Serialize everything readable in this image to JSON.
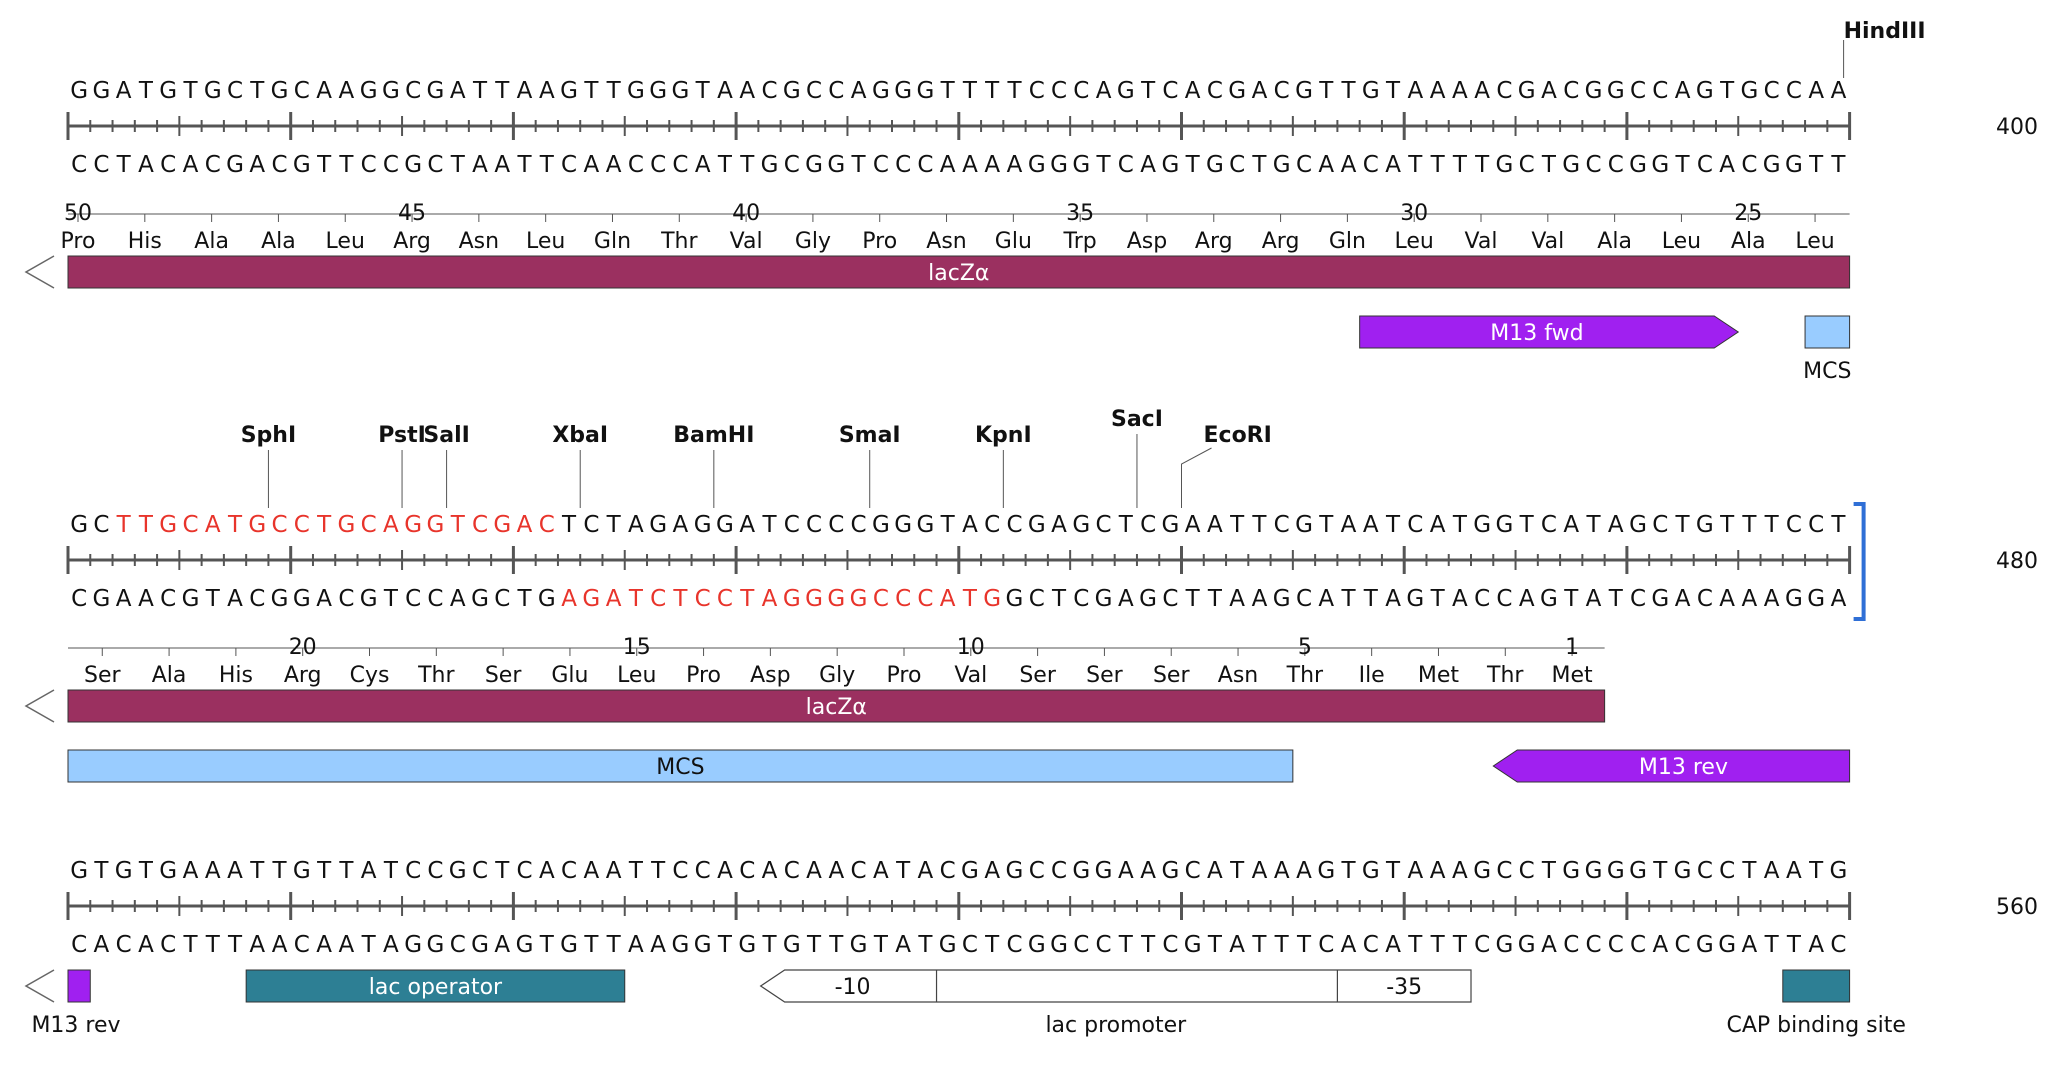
{
  "colors": {
    "text": "#111111",
    "highlight": "#e8342b",
    "ruler": "#555555",
    "lacZ": "#9b3060",
    "m13": "#a020f0",
    "mcs": "#99ccff",
    "lacOperator": "#2d7f94",
    "cap": "#2d7f94",
    "promoter": "#ffffff",
    "selection": "#2f6fd6"
  },
  "rows": [
    {
      "top": "GGATGTGCTGCAAGGCGATTAAGTTGGGTAACGCCAGGGTTTTCCCAGTCACGACGTTGTAAAACGACGGCCAGTGCCAA",
      "bottom": "CCTACACGACGTTCCGCTAATTCAACCCATTGCGGTCCCAAAAGGGTCAGTGCTGCAACATTTTGCTGCCGGTCACGGTT",
      "position": "400",
      "enzymes": [
        {
          "name": "HindIII",
          "pos": 80
        }
      ],
      "aa": [
        "Pro",
        "His",
        "Ala",
        "Ala",
        "Leu",
        "Arg",
        "Asn",
        "Leu",
        "Gln",
        "Thr",
        "Val",
        "Gly",
        "Pro",
        "Asn",
        "Glu",
        "Trp",
        "Asp",
        "Arg",
        "Arg",
        "Gln",
        "Leu",
        "Val",
        "Val",
        "Ala",
        "Leu",
        "Ala",
        "Leu"
      ],
      "aa_numbers": [
        {
          "num": "50",
          "idx": 0
        },
        {
          "num": "45",
          "idx": 5
        },
        {
          "num": "40",
          "idx": 10
        },
        {
          "num": "35",
          "idx": 15
        },
        {
          "num": "30",
          "idx": 20
        },
        {
          "num": "25",
          "idx": 25
        }
      ],
      "features": [
        {
          "name": "lacZα",
          "start": 0,
          "end": 80,
          "kind": "lacZ",
          "lane": 0,
          "dir": "left-cont"
        },
        {
          "name": "M13 fwd",
          "start": 58,
          "end": 75,
          "kind": "m13",
          "lane": 1,
          "dir": "right"
        },
        {
          "name": "MCS",
          "start": 78,
          "end": 80,
          "kind": "mcs",
          "lane": 1,
          "labelBelow": true
        }
      ]
    },
    {
      "top": "GCTTGCATGCCTGCAGGTCGACTCTAGAGGATCCCCGGGTACCGAGCTCGAATTCGTAATCATGGTCATAGCTGTTTCCT",
      "bottom": "CGAACGTACGGACGTCCAGCTGAGATCTCCTAGGGGCCCATGGCTCGAGCTTAAGCATTAGTACCAGTATCGACAAAGGA",
      "position": "480",
      "enzymes": [
        {
          "name": "SphI",
          "pos": 9
        },
        {
          "name": "PstI",
          "pos": 15
        },
        {
          "name": "SalI",
          "pos": 17
        },
        {
          "name": "XbaI",
          "pos": 23
        },
        {
          "name": "BamHI",
          "pos": 29
        },
        {
          "name": "SmaI",
          "pos": 36
        },
        {
          "name": "KpnI",
          "pos": 42
        },
        {
          "name": "SacI",
          "pos": 48
        },
        {
          "name": "EcoRI",
          "pos": 50
        }
      ],
      "aa": [
        "Ser",
        "Ala",
        "His",
        "Arg",
        "Cys",
        "Thr",
        "Ser",
        "Glu",
        "Leu",
        "Pro",
        "Asp",
        "Gly",
        "Pro",
        "Val",
        "Ser",
        "Ser",
        "Ser",
        "Asn",
        "Thr",
        "Ile",
        "Met",
        "Thr",
        "Met"
      ],
      "aa_numbers": [
        {
          "num": "20",
          "idx": 3
        },
        {
          "num": "15",
          "idx": 8
        },
        {
          "num": "10",
          "idx": 13
        },
        {
          "num": "5",
          "idx": 18
        },
        {
          "num": "1",
          "idx": 22
        }
      ],
      "features": [
        {
          "name": "lacZα",
          "start": 0,
          "end": 69,
          "kind": "lacZ",
          "lane": 0,
          "dir": "left-cont"
        },
        {
          "name": "MCS",
          "start": 0,
          "end": 55,
          "kind": "mcs",
          "lane": 1
        },
        {
          "name": "M13 rev",
          "start": 64,
          "end": 80,
          "kind": "m13",
          "lane": 1,
          "dir": "left"
        }
      ]
    },
    {
      "top": "GTGTGAAATTGTTATCCGCTCACAATTCCACACAACATACGAGCCGGAAGCATAAAGTGTAAAGCCTGGGGTGCCTAATG",
      "bottom": "CACACTTTAACAATAGGCGAGTGTTAAGGTGTGTTGTATGCTCGGCCTTCGTATTTCACATTTCGGACCCCACGGATTAC",
      "position": "560",
      "enzymes": [],
      "aa": [],
      "aa_numbers": [],
      "features": [
        {
          "name": "M13 rev",
          "start": 0,
          "end": 1,
          "kind": "m13",
          "lane": 0,
          "dir": "left-cont",
          "labelBelow": true
        },
        {
          "name": "lac operator",
          "start": 8,
          "end": 25,
          "kind": "lacOperator",
          "lane": 0
        },
        {
          "name": "lac promoter",
          "start": 32,
          "end": 63,
          "kind": "promoter",
          "lane": 0,
          "dir": "left",
          "labelBelow": true,
          "segments": [
            {
              "label": "-10",
              "start": 32,
              "end": 39
            },
            {
              "label": "",
              "start": 39,
              "end": 57
            },
            {
              "label": "-35",
              "start": 57,
              "end": 63
            }
          ]
        },
        {
          "name": "CAP binding site",
          "start": 77,
          "end": 80,
          "kind": "cap",
          "lane": 0,
          "labelBelow": true
        }
      ]
    }
  ],
  "highlights": {
    "row1_top": [
      [
        2,
        22
      ]
    ],
    "row1_bottom": [
      [
        22,
        42
      ]
    ]
  }
}
